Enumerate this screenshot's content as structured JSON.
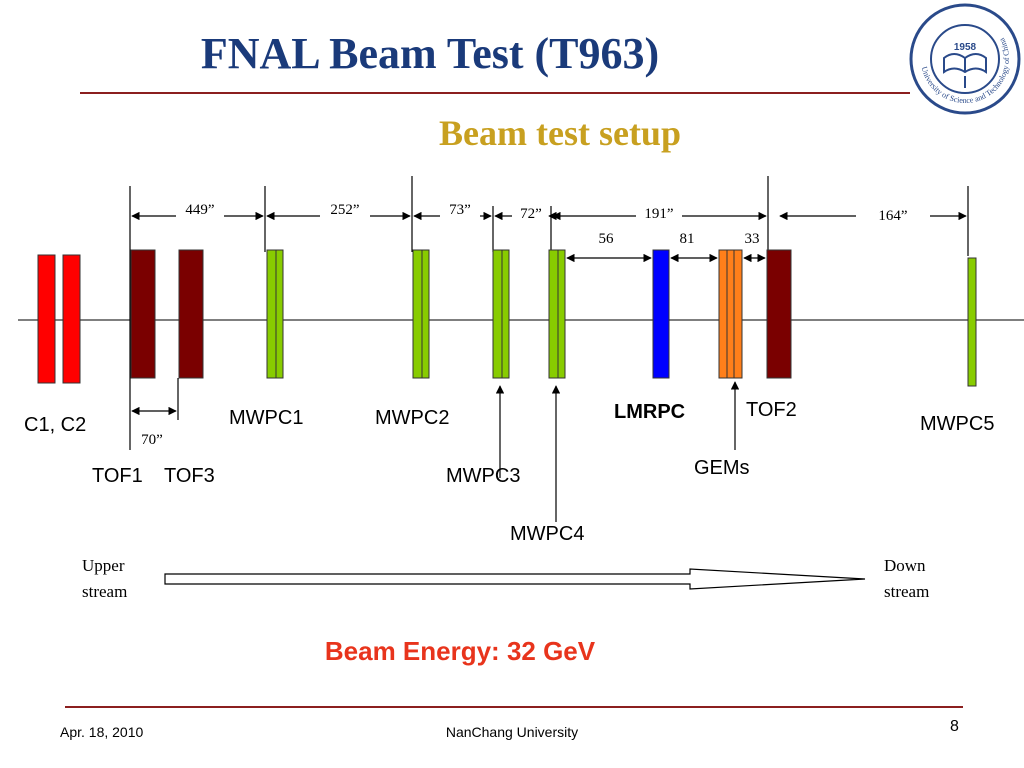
{
  "slide": {
    "title": "FNAL Beam Test (T963)",
    "subtitle": "Beam test setup",
    "beam_energy": "Beam Energy: 32 GeV",
    "date": "Apr. 18, 2010",
    "institution": "NanChang University",
    "page_number": "8"
  },
  "logo": {
    "year": "1958",
    "ring_text": "University of Science and Technology of China"
  },
  "diagram": {
    "labels": {
      "c1c2": "C1, C2",
      "tof1": "TOF1",
      "tof3": "TOF3",
      "mwpc1": "MWPC1",
      "mwpc2": "MWPC2",
      "mwpc3": "MWPC3",
      "mwpc4": "MWPC4",
      "lmrpc": "LMRPC",
      "gems": "GEMs",
      "tof2": "TOF2",
      "mwpc5": "MWPC5"
    },
    "distances": {
      "d449": "449”",
      "d252": "252”",
      "d73": "73”",
      "d72": "72”",
      "d191": "191”",
      "d164": "164”",
      "d56": "56",
      "d81": "81",
      "d33": "33",
      "d70": "70”"
    },
    "flow": {
      "upstream_1": "Upper",
      "upstream_2": "stream",
      "downstream_1": "Down",
      "downstream_2": "stream"
    },
    "colors": {
      "counter": "#ff0000",
      "tof": "#7a0000",
      "mwpc": "#88cc00",
      "lmrpc": "#0000ff",
      "gem": "#ff7f1a",
      "title": "#1a3a7a",
      "subtitle": "#c8a020",
      "energy": "#e8341c"
    }
  }
}
